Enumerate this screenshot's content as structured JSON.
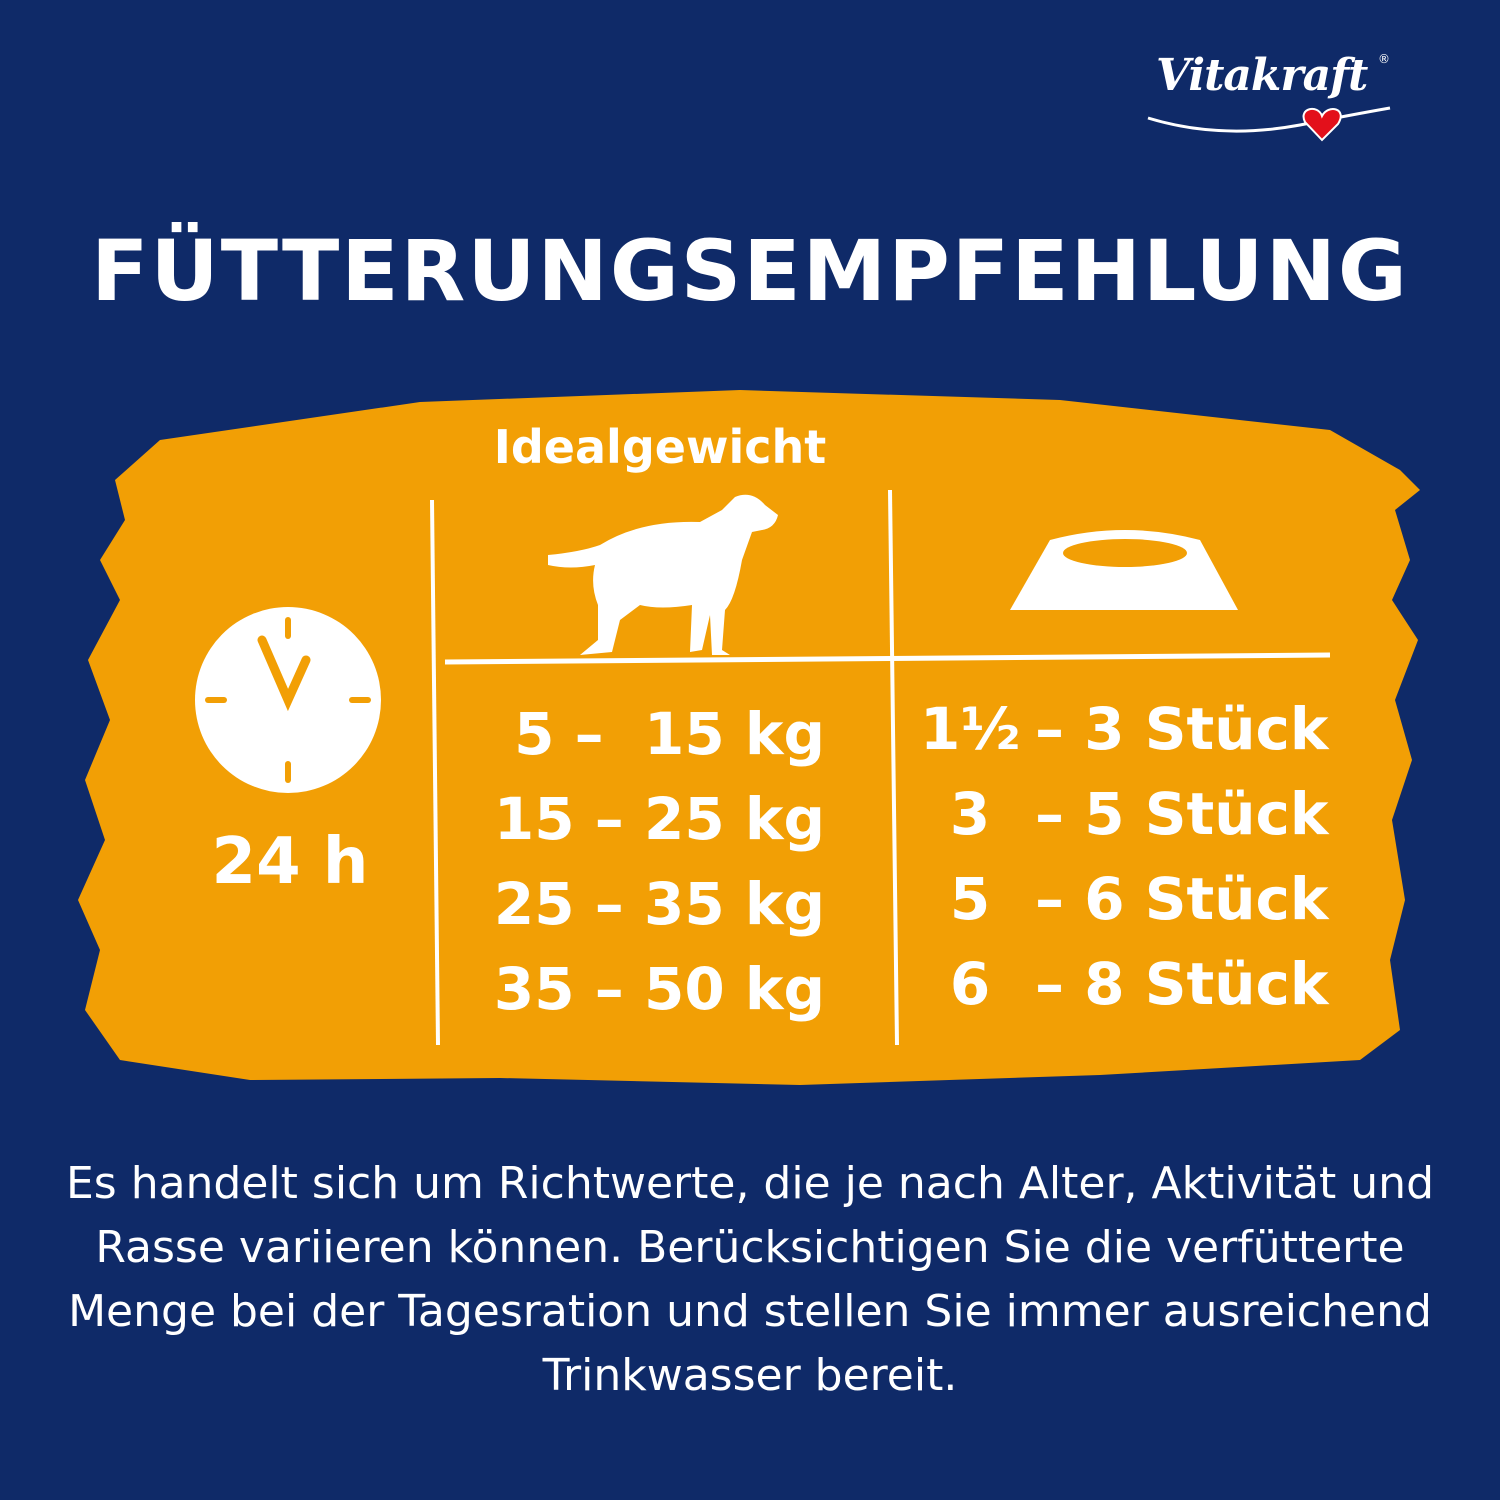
{
  "brand": {
    "logo_text": "Vitakraft",
    "registered": "®"
  },
  "title": "FÜTTERUNGSEMPFEHLUNG",
  "colors": {
    "background": "#0f2a68",
    "panel": "#f29f05",
    "text": "#ffffff",
    "heart": "#e3101b"
  },
  "icons": {
    "period": "clock-icon",
    "weight": "dog-icon",
    "amount": "food-bowl-icon"
  },
  "period": "24 h",
  "table": {
    "weight_header": "Idealgewicht",
    "rows": [
      {
        "weight": "5 –  15 kg",
        "from": "1½",
        "to": "– 3 Stück"
      },
      {
        "weight": "15 – 25 kg",
        "from": "3",
        "to": "– 5 Stück"
      },
      {
        "weight": "25 – 35 kg",
        "from": "5",
        "to": "– 6 Stück"
      },
      {
        "weight": "35 – 50 kg",
        "from": "6",
        "to": "– 8 Stück"
      }
    ]
  },
  "note": "Es handelt sich um Richtwerte, die je nach Alter, Aktivität und Rasse variieren können. Berücksichtigen Sie die verfütterte Menge bei der Tagesration und stellen Sie immer ausreichend Trinkwasser bereit."
}
